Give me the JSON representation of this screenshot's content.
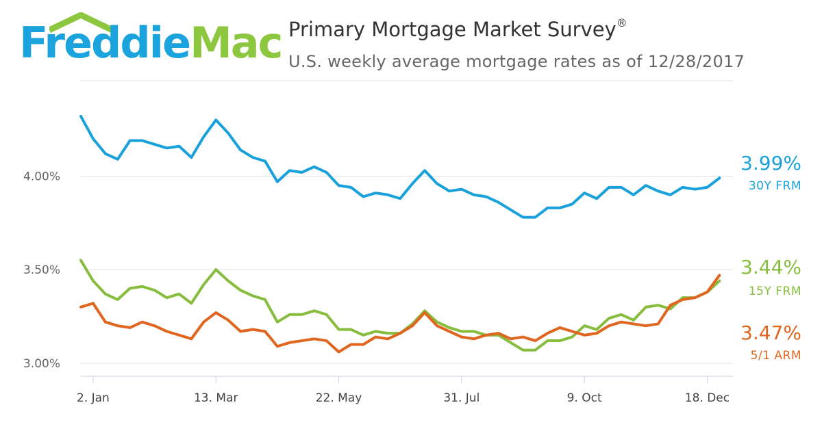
{
  "header": {
    "logo_word_1": "Freddie",
    "logo_word_2": "Mac",
    "title": "Primary Mortgage Market Survey",
    "title_mark": "®",
    "subtitle": "U.S. weekly average mortgage rates as of 12/28/2017"
  },
  "colors": {
    "logo_blue": "#1aa3dc",
    "logo_green": "#8dc63f",
    "series_30y": "#19a1dc",
    "series_15y": "#87bd3d",
    "series_arm": "#e0651e"
  },
  "chart_data": {
    "type": "line",
    "ylim": [
      2.93,
      4.51
    ],
    "yticks": [
      {
        "value": 3.0,
        "label": "3.00%"
      },
      {
        "value": 3.5,
        "label": "3.50%"
      },
      {
        "value": 4.0,
        "label": "4.00%"
      }
    ],
    "xticks": [
      {
        "week": 1,
        "label": "2. Jan"
      },
      {
        "week": 11,
        "label": "13. Mar"
      },
      {
        "week": 21,
        "label": "22. May"
      },
      {
        "week": 31,
        "label": "31. Jul"
      },
      {
        "week": 41,
        "label": "9. Oct"
      },
      {
        "week": 51,
        "label": "18. Dec"
      }
    ],
    "grid": true,
    "legend": "right-end-labels",
    "weeks": 53,
    "series": [
      {
        "name": "30Y FRM",
        "end_label": "3.99%",
        "color": "#19a1dc",
        "values": [
          4.32,
          4.2,
          4.12,
          4.09,
          4.19,
          4.19,
          4.17,
          4.15,
          4.16,
          4.1,
          4.21,
          4.3,
          4.23,
          4.14,
          4.1,
          4.08,
          3.97,
          4.03,
          4.02,
          4.05,
          4.02,
          3.95,
          3.94,
          3.89,
          3.91,
          3.9,
          3.88,
          3.96,
          4.03,
          3.96,
          3.92,
          3.93,
          3.9,
          3.89,
          3.86,
          3.82,
          3.78,
          3.78,
          3.83,
          3.83,
          3.85,
          3.91,
          3.88,
          3.94,
          3.94,
          3.9,
          3.95,
          3.92,
          3.9,
          3.94,
          3.93,
          3.94,
          3.99
        ]
      },
      {
        "name": "15Y FRM",
        "end_label": "3.44%",
        "color": "#87bd3d",
        "values": [
          3.55,
          3.44,
          3.37,
          3.34,
          3.4,
          3.41,
          3.39,
          3.35,
          3.37,
          3.32,
          3.42,
          3.5,
          3.44,
          3.39,
          3.36,
          3.34,
          3.22,
          3.26,
          3.26,
          3.28,
          3.26,
          3.18,
          3.18,
          3.15,
          3.17,
          3.16,
          3.16,
          3.21,
          3.28,
          3.22,
          3.19,
          3.17,
          3.17,
          3.15,
          3.15,
          3.11,
          3.07,
          3.07,
          3.12,
          3.12,
          3.14,
          3.2,
          3.18,
          3.24,
          3.26,
          3.23,
          3.3,
          3.31,
          3.29,
          3.35,
          3.35,
          3.38,
          3.44
        ]
      },
      {
        "name": "5/1 ARM",
        "end_label": "3.47%",
        "color": "#e0651e",
        "values": [
          3.3,
          3.32,
          3.22,
          3.2,
          3.19,
          3.22,
          3.2,
          3.17,
          3.15,
          3.13,
          3.22,
          3.27,
          3.23,
          3.17,
          3.18,
          3.17,
          3.09,
          3.11,
          3.12,
          3.13,
          3.12,
          3.06,
          3.1,
          3.1,
          3.14,
          3.13,
          3.16,
          3.2,
          3.27,
          3.2,
          3.17,
          3.14,
          3.13,
          3.15,
          3.16,
          3.13,
          3.14,
          3.12,
          3.16,
          3.19,
          3.17,
          3.15,
          3.16,
          3.2,
          3.22,
          3.21,
          3.2,
          3.21,
          3.31,
          3.34,
          3.35,
          3.38,
          3.47
        ]
      }
    ]
  }
}
